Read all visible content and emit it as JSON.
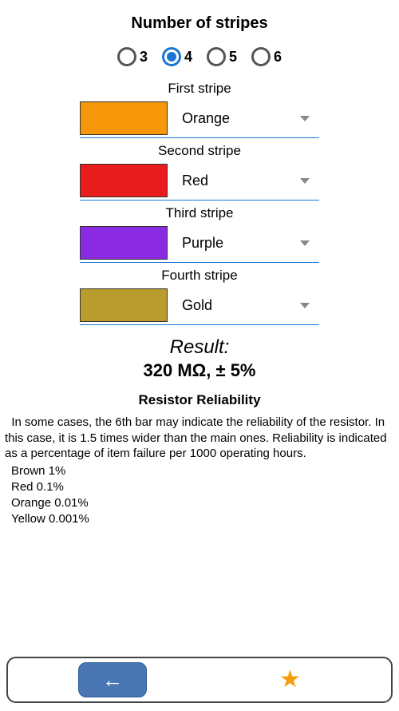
{
  "header": {
    "title": "Number of stripes"
  },
  "radios": {
    "options": [
      {
        "label": "3",
        "selected": false
      },
      {
        "label": "4",
        "selected": true
      },
      {
        "label": "5",
        "selected": false
      },
      {
        "label": "6",
        "selected": false
      }
    ],
    "selected_color": "#1976d2",
    "unselected_color": "#555555"
  },
  "stripes": [
    {
      "title": "First stripe",
      "color_name": "Orange",
      "swatch": "#f59708",
      "border": "#333333"
    },
    {
      "title": "Second stripe",
      "color_name": "Red",
      "swatch": "#e81c1c",
      "border": "#333333"
    },
    {
      "title": "Third stripe",
      "color_name": "Purple",
      "swatch": "#8a2be2",
      "border": "#333333"
    },
    {
      "title": "Fourth stripe",
      "color_name": "Gold",
      "swatch": "#b89c2e",
      "border": "#333333"
    }
  ],
  "stripe_style": {
    "underline_color": "#1976d2",
    "caret_color": "#888888",
    "swatch_width": 110,
    "swatch_height": 42,
    "section_width": 300
  },
  "result": {
    "label": "Result:",
    "value": "320 MΩ, ± 5%",
    "label_fontsize": 24,
    "value_fontsize": 22
  },
  "reliability": {
    "title": "Resistor Reliability",
    "paragraph": "  In some cases, the 6th bar may indicate the reliability of the resistor. In this case, it is 1.5 times wider than the main ones. Reliability is indicated as a percentage of item failure per 1000 operating hours.",
    "lines": [
      "Brown 1%",
      "Red 0.1%",
      "Orange 0.01%",
      "Yellow 0.001%"
    ]
  },
  "bottombar": {
    "back_bg": "#4a77b4",
    "back_border": "#2a5a94",
    "star_color": "#f59e0b",
    "border_color": "#444444",
    "border_radius": 12
  }
}
